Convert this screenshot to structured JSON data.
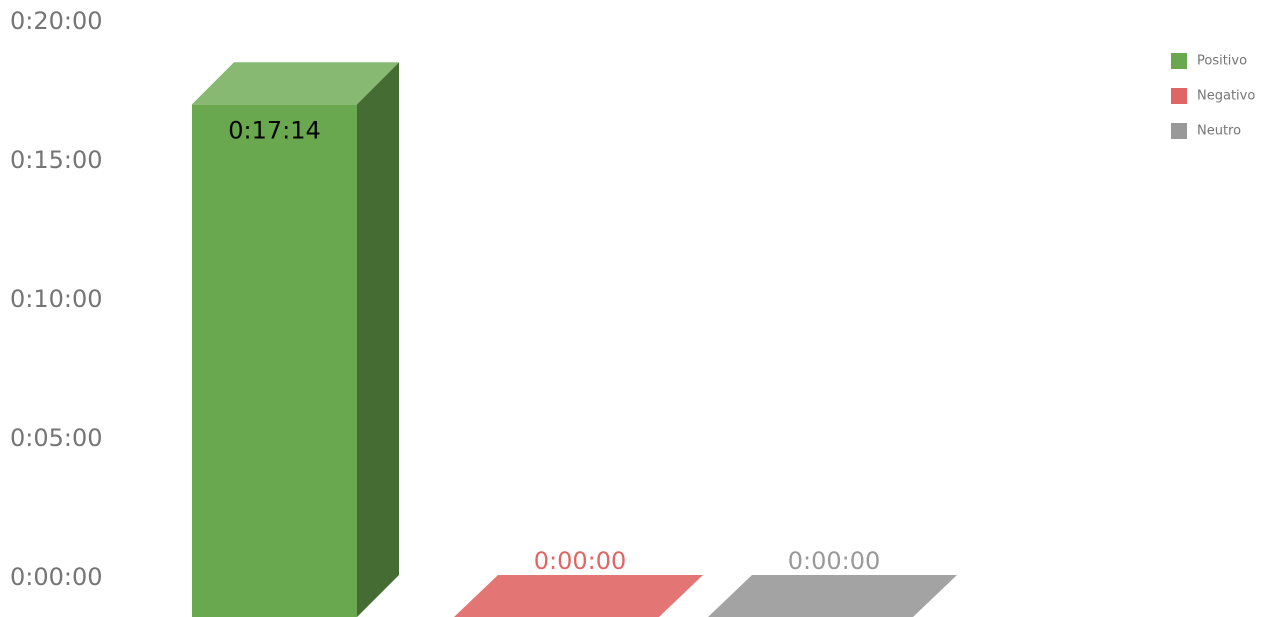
{
  "chart_data": {
    "type": "bar",
    "three_d": true,
    "categories": [
      "Positivo",
      "Negativo",
      "Neutro"
    ],
    "values_seconds": [
      1034,
      0,
      0
    ],
    "data_labels": [
      "0:17:14",
      "0:00:00",
      "0:00:00"
    ],
    "yticks": [
      "0:00:00",
      "0:05:00",
      "0:10:00",
      "0:15:00",
      "0:20:00"
    ],
    "ylim_seconds": [
      0,
      1200
    ],
    "grid": false,
    "legend": {
      "position": "top-right",
      "entries": [
        "Positivo",
        "Negativo",
        "Neutro"
      ]
    },
    "colors": [
      "#6aa84f",
      "#e06666",
      "#999999"
    ],
    "label_colors": [
      "#000000",
      "#e06666",
      "#999999"
    ]
  }
}
